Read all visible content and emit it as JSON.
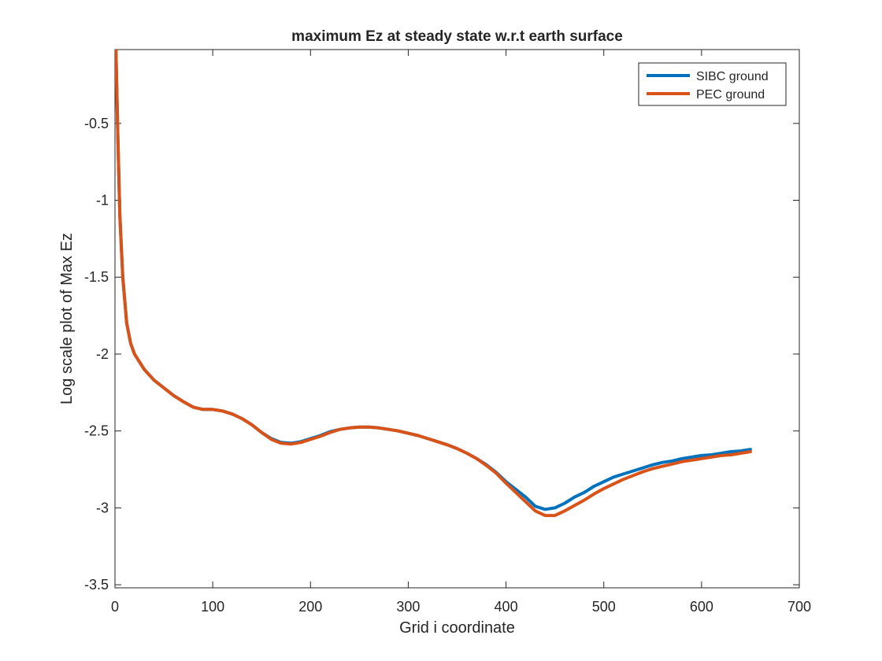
{
  "chart_data": {
    "type": "line",
    "title": "maximum Ez at steady state w.r.t earth surface",
    "xlabel": "Grid i coordinate",
    "ylabel": "Log scale plot of Max Ez",
    "xlim": [
      0,
      700
    ],
    "ylim": [
      -3.52,
      -0.02
    ],
    "xticks": [
      0,
      100,
      200,
      300,
      400,
      500,
      600,
      700
    ],
    "yticks": [
      -3.5,
      -3,
      -2.5,
      -2,
      -1.5,
      -1,
      -0.5
    ],
    "xtick_labels": [
      "0",
      "100",
      "200",
      "300",
      "400",
      "500",
      "600",
      "700"
    ],
    "ytick_labels": [
      "-3.5",
      "-3",
      "-2.5",
      "-2",
      "-1.5",
      "-1",
      "-0.5"
    ],
    "grid": false,
    "legend_position": "top-right",
    "series": [
      {
        "name": "SIBC ground",
        "color": "#0072BD",
        "x": [
          1,
          3,
          5,
          8,
          12,
          16,
          20,
          25,
          30,
          40,
          50,
          60,
          70,
          80,
          90,
          100,
          110,
          120,
          130,
          140,
          150,
          160,
          170,
          180,
          190,
          200,
          210,
          220,
          230,
          240,
          250,
          260,
          270,
          280,
          290,
          300,
          310,
          320,
          330,
          340,
          350,
          360,
          370,
          380,
          390,
          400,
          410,
          420,
          430,
          440,
          450,
          460,
          470,
          480,
          490,
          500,
          510,
          520,
          530,
          540,
          550,
          560,
          570,
          580,
          590,
          600,
          610,
          620,
          630,
          640,
          650
        ],
        "values": [
          -0.02,
          -0.6,
          -1.1,
          -1.5,
          -1.8,
          -1.93,
          -2.0,
          -2.05,
          -2.1,
          -2.17,
          -2.22,
          -2.27,
          -2.31,
          -2.345,
          -2.36,
          -2.36,
          -2.37,
          -2.39,
          -2.42,
          -2.46,
          -2.51,
          -2.55,
          -2.575,
          -2.58,
          -2.57,
          -2.55,
          -2.53,
          -2.505,
          -2.49,
          -2.48,
          -2.475,
          -2.475,
          -2.48,
          -2.49,
          -2.5,
          -2.515,
          -2.53,
          -2.55,
          -2.57,
          -2.59,
          -2.615,
          -2.645,
          -2.68,
          -2.72,
          -2.77,
          -2.83,
          -2.88,
          -2.93,
          -2.99,
          -3.01,
          -3.0,
          -2.97,
          -2.93,
          -2.9,
          -2.86,
          -2.83,
          -2.8,
          -2.78,
          -2.76,
          -2.74,
          -2.72,
          -2.705,
          -2.695,
          -2.68,
          -2.67,
          -2.66,
          -2.655,
          -2.645,
          -2.635,
          -2.63,
          -2.62
        ]
      },
      {
        "name": "PEC ground",
        "color": "#D95319",
        "x": [
          1,
          3,
          5,
          8,
          12,
          16,
          20,
          25,
          30,
          40,
          50,
          60,
          70,
          80,
          90,
          100,
          110,
          120,
          130,
          140,
          150,
          160,
          170,
          180,
          190,
          200,
          210,
          220,
          230,
          240,
          250,
          260,
          270,
          280,
          290,
          300,
          310,
          320,
          330,
          340,
          350,
          360,
          370,
          380,
          390,
          400,
          410,
          420,
          430,
          440,
          450,
          460,
          470,
          480,
          490,
          500,
          510,
          520,
          530,
          540,
          550,
          560,
          570,
          580,
          590,
          600,
          610,
          620,
          630,
          640,
          650
        ],
        "values": [
          -0.02,
          -0.6,
          -1.1,
          -1.5,
          -1.8,
          -1.93,
          -2.0,
          -2.05,
          -2.1,
          -2.17,
          -2.22,
          -2.27,
          -2.31,
          -2.345,
          -2.36,
          -2.36,
          -2.37,
          -2.39,
          -2.42,
          -2.46,
          -2.51,
          -2.555,
          -2.58,
          -2.585,
          -2.575,
          -2.555,
          -2.535,
          -2.51,
          -2.49,
          -2.48,
          -2.475,
          -2.475,
          -2.48,
          -2.49,
          -2.5,
          -2.515,
          -2.53,
          -2.55,
          -2.57,
          -2.59,
          -2.615,
          -2.645,
          -2.68,
          -2.725,
          -2.775,
          -2.84,
          -2.9,
          -2.96,
          -3.02,
          -3.05,
          -3.05,
          -3.02,
          -2.985,
          -2.95,
          -2.91,
          -2.875,
          -2.845,
          -2.815,
          -2.79,
          -2.765,
          -2.745,
          -2.73,
          -2.715,
          -2.7,
          -2.69,
          -2.68,
          -2.67,
          -2.66,
          -2.655,
          -2.645,
          -2.635
        ]
      }
    ]
  }
}
